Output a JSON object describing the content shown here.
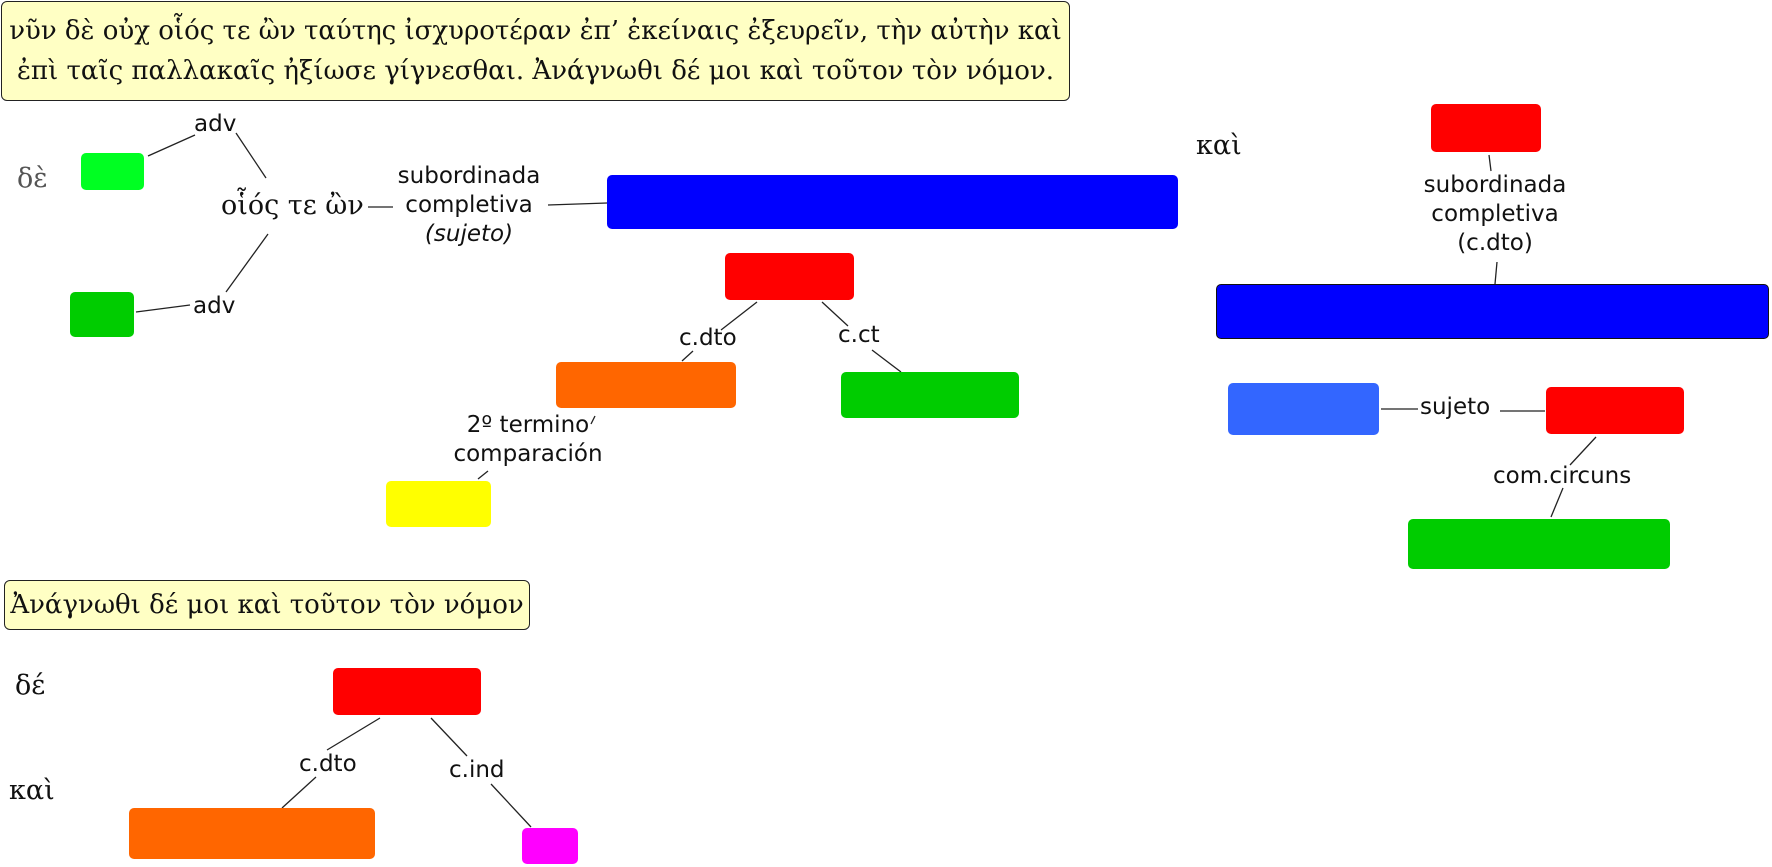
{
  "sentences": {
    "main_line1": "νῦν δὲ οὐχ οἷός τε ὢν ταύτης ἰσχυροτέραν ἐπ’ ἐκείναις ἐξευρεῖν, τὴν αὐτὴν καὶ",
    "main_line2": "ἐπὶ ταῖς παλλακαῖς ἠξίωσε γίγνεσθαι. Ἀνάγνωθι δέ μοι καὶ τοῦτον τὸν νόμον.",
    "second": "Ἀνάγνωθι δέ μοι καὶ τοῦτον τὸν νόμον"
  },
  "words": {
    "de_1": "δὲ",
    "hoios": "οἷός τε ὢν",
    "kai_1": "καὶ",
    "de_2": "δέ",
    "kai_2": "καὶ"
  },
  "labels": {
    "adv_top": "adv",
    "adv_bottom": "adv",
    "sub_completiva_1_l1": "subordinada",
    "sub_completiva_1_l2": "completiva",
    "sub_completiva_1_l3": "(sujeto)",
    "cdto_1": "c.dto",
    "cct_1": "c.ct",
    "termino_l1": "2º termino",
    "termino_l2": "comparación",
    "sub_completiva_2_l1": "subordinada",
    "sub_completiva_2_l2": "completiva",
    "sub_completiva_2_l3": "(c.dto)",
    "sujeto_2": "sujeto",
    "comcircuns": "com.circuns",
    "cdto_3": "c.dto",
    "cind_3": "c.ind"
  },
  "colors": {
    "sentence_bg": "#ffffc4",
    "verb": "#ff0000",
    "clause": "#0000ff",
    "subject": "#3366ff",
    "object": "#ff6600",
    "circumstantial": "#00cc00",
    "adverb": "#00ff22",
    "comparison": "#ffff00",
    "indirect": "#ff00ff",
    "line": "#222222"
  }
}
